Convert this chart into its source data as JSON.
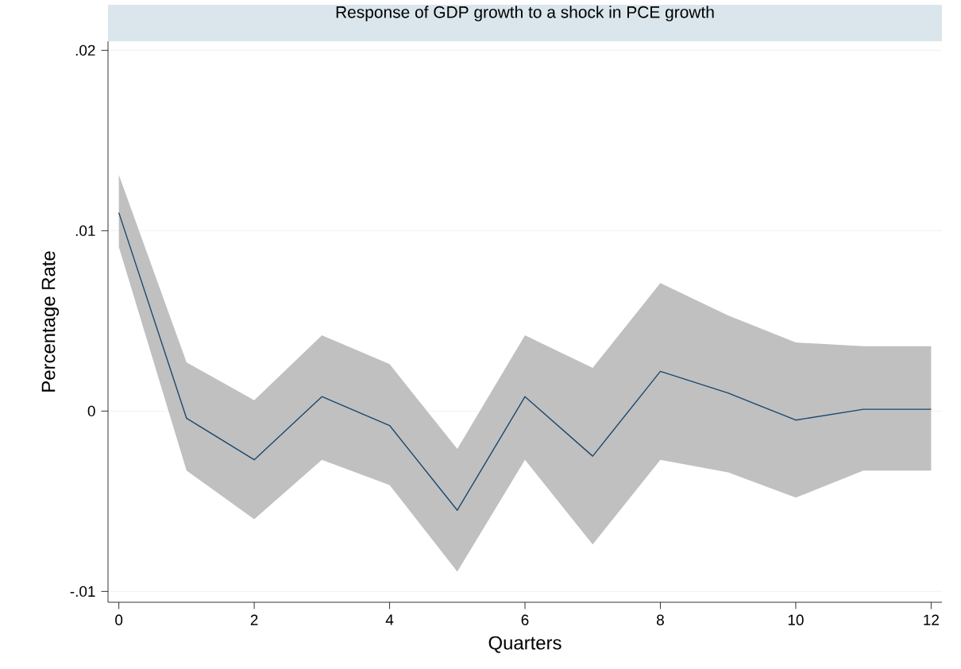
{
  "chart_data": {
    "type": "line",
    "title": "Response of GDP growth to a shock in PCE growth",
    "xlabel": "Quarters",
    "ylabel": "Percentage Rate",
    "x": [
      0,
      1,
      2,
      3,
      4,
      5,
      6,
      7,
      8,
      9,
      10,
      11,
      12
    ],
    "series": [
      {
        "color": "#1a476f",
        "values": [
          0.011,
          -0.0004,
          -0.0027,
          0.0008,
          -0.0008,
          -0.0055,
          0.0008,
          -0.0025,
          0.0022,
          0.001,
          -0.0005,
          0.0001,
          0.0001
        ],
        "lower": [
          0.0091,
          -0.0033,
          -0.006,
          -0.0027,
          -0.0041,
          -0.0089,
          -0.0027,
          -0.0074,
          -0.0027,
          -0.0034,
          -0.0048,
          -0.0033,
          -0.0033
        ],
        "upper": [
          0.0131,
          0.0027,
          0.0006,
          0.0042,
          0.0026,
          -0.0021,
          0.0042,
          0.0024,
          0.0071,
          0.0053,
          0.0038,
          0.0036,
          0.0036
        ]
      }
    ],
    "xlim": [
      -0.16,
      12.16
    ],
    "ylim": [
      -0.0106,
      0.0205
    ],
    "xticks": [
      0,
      2,
      4,
      6,
      8,
      10,
      12
    ],
    "yticks": [
      {
        "value": -0.01,
        "label": "-.01"
      },
      {
        "value": 0,
        "label": "0"
      },
      {
        "value": 0.01,
        "label": ".01"
      },
      {
        "value": 0.02,
        "label": ".02"
      }
    ],
    "grid": "y",
    "marker": "none",
    "line_style": "solid"
  }
}
